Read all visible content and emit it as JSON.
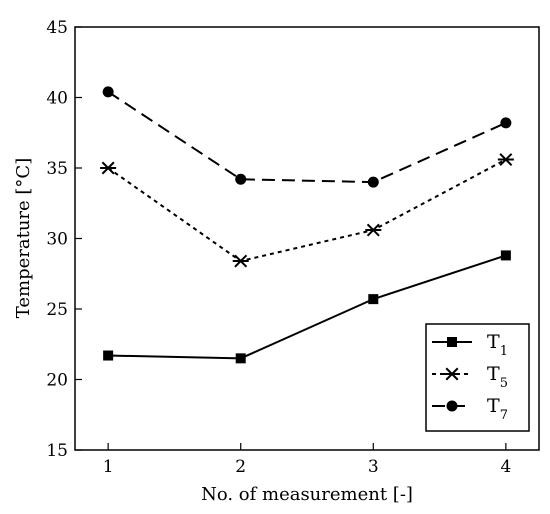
{
  "chart_data": {
    "type": "line",
    "title": "",
    "xlabel": "No. of measurement [-]",
    "ylabel": "Temperature [°C]",
    "x": [
      1,
      2,
      3,
      4
    ],
    "xticks": [
      "1",
      "2",
      "3",
      "4"
    ],
    "xlim": [
      0.75,
      4.25
    ],
    "ylim": [
      15,
      45
    ],
    "yticks": [
      "15",
      "20",
      "25",
      "30",
      "35",
      "40",
      "45"
    ],
    "grid": false,
    "legend_position": "bottom-right",
    "series": [
      {
        "name": "T1",
        "label_main": "T",
        "label_sub": "1",
        "marker": "square",
        "line": "solid",
        "values": [
          21.7,
          21.5,
          25.7,
          28.8
        ]
      },
      {
        "name": "T5",
        "label_main": "T",
        "label_sub": "5",
        "marker": "asterisk",
        "line": "dotted",
        "values": [
          35.0,
          28.4,
          30.6,
          35.6
        ]
      },
      {
        "name": "T7",
        "label_main": "T",
        "label_sub": "7",
        "marker": "circle",
        "line": "dashed",
        "values": [
          40.4,
          34.2,
          34.0,
          38.2
        ]
      }
    ],
    "colors": {
      "line": "#000000",
      "background": "#ffffff"
    }
  }
}
